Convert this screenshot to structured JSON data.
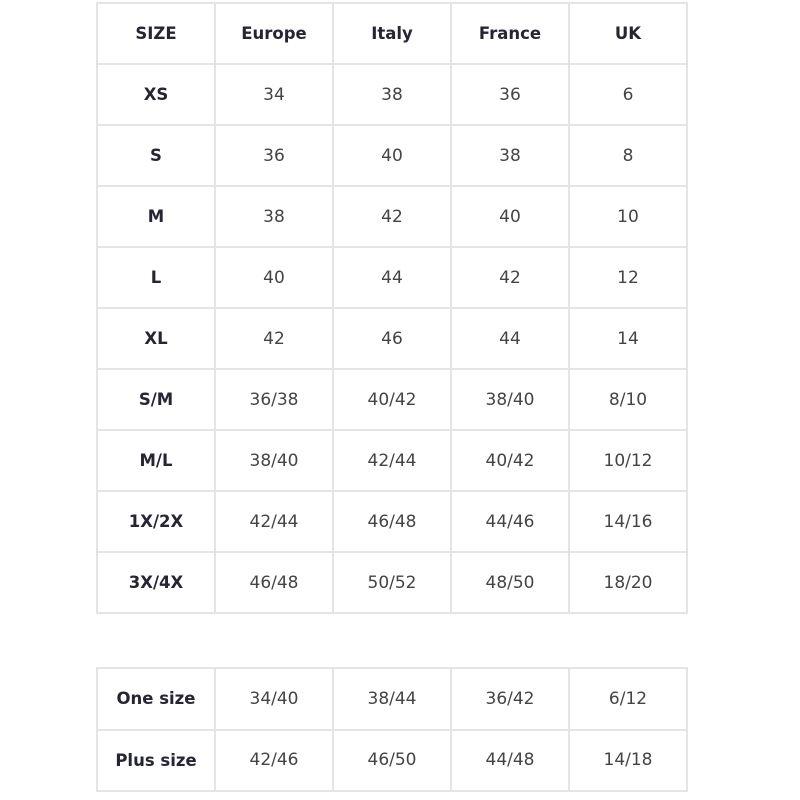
{
  "size_chart": {
    "headers": [
      "SIZE",
      "Europe",
      "Italy",
      "France",
      "UK"
    ],
    "rows": [
      [
        "XS",
        "34",
        "38",
        "36",
        "6"
      ],
      [
        "S",
        "36",
        "40",
        "38",
        "8"
      ],
      [
        "M",
        "38",
        "42",
        "40",
        "10"
      ],
      [
        "L",
        "40",
        "44",
        "42",
        "12"
      ],
      [
        "XL",
        "42",
        "46",
        "44",
        "14"
      ],
      [
        "S/M",
        "36/38",
        "40/42",
        "38/40",
        "8/10"
      ],
      [
        "M/L",
        "38/40",
        "42/44",
        "40/42",
        "10/12"
      ],
      [
        "1X/2X",
        "42/44",
        "46/48",
        "44/46",
        "14/16"
      ],
      [
        "3X/4X",
        "46/48",
        "50/52",
        "48/50",
        "18/20"
      ]
    ]
  },
  "special_sizes": {
    "rows": [
      [
        "One size",
        "34/40",
        "38/44",
        "36/42",
        "6/12"
      ],
      [
        "Plus size",
        "42/46",
        "46/50",
        "44/48",
        "14/18"
      ]
    ]
  }
}
